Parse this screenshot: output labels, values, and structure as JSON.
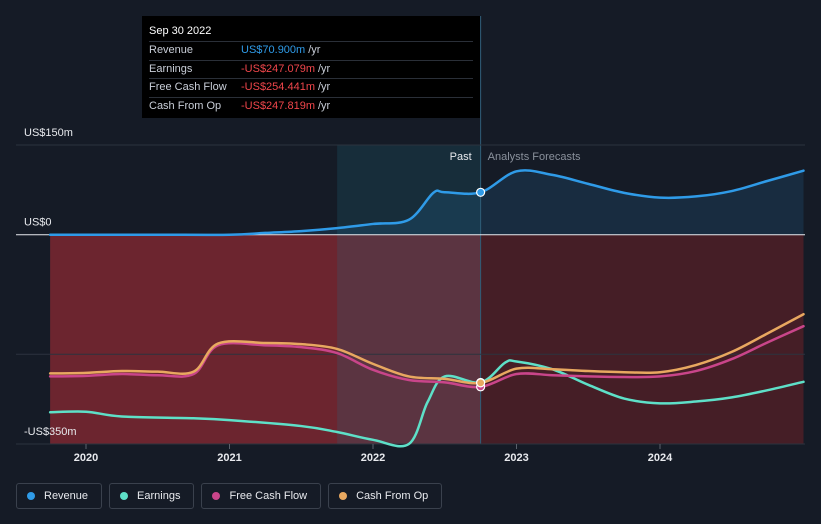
{
  "tooltip": {
    "date": "Sep 30 2022",
    "rows": [
      {
        "label": "Revenue",
        "value": "US$70.900m",
        "unit": "/yr"
      },
      {
        "label": "Earnings",
        "value": "-US$247.079m",
        "unit": "/yr"
      },
      {
        "label": "Free Cash Flow",
        "value": "-US$254.441m",
        "unit": "/yr"
      },
      {
        "label": "Cash From Op",
        "value": "-US$247.819m",
        "unit": "/yr"
      }
    ]
  },
  "legend": [
    {
      "label": "Revenue",
      "color": "#2f9be8"
    },
    {
      "label": "Earnings",
      "color": "#5ee0c8"
    },
    {
      "label": "Free Cash Flow",
      "color": "#c9458a"
    },
    {
      "label": "Cash From Op",
      "color": "#e8a860"
    }
  ],
  "chart_data": {
    "type": "line",
    "y_tick_labels": [
      {
        "value": 150,
        "label": "US$150m"
      },
      {
        "value": 0,
        "label": "US$0"
      },
      {
        "value": -350,
        "label": "-US$350m"
      }
    ],
    "x_tick_labels": [
      "2020",
      "2021",
      "2022",
      "2023",
      "2024"
    ],
    "ylim": [
      -350,
      150
    ],
    "past_label": "Past",
    "forecast_label": "Analysts Forecasts",
    "past_end": 2022.75,
    "highlight_start": 2021.75,
    "series": [
      {
        "name": "Revenue",
        "color": "#2f9be8",
        "points": [
          [
            2019.75,
            0
          ],
          [
            2020.0,
            0
          ],
          [
            2020.5,
            0
          ],
          [
            2021.0,
            0
          ],
          [
            2021.25,
            3
          ],
          [
            2021.5,
            6
          ],
          [
            2021.75,
            11
          ],
          [
            2022.0,
            18
          ],
          [
            2022.25,
            25
          ],
          [
            2022.42,
            70
          ],
          [
            2022.5,
            71
          ],
          [
            2022.75,
            70.9
          ],
          [
            2023.0,
            106
          ],
          [
            2023.25,
            100
          ],
          [
            2023.5,
            85
          ],
          [
            2023.75,
            70
          ],
          [
            2024.0,
            62
          ],
          [
            2024.25,
            64
          ],
          [
            2024.5,
            73
          ],
          [
            2024.75,
            90
          ],
          [
            2025.0,
            107
          ]
        ]
      },
      {
        "name": "Earnings",
        "color": "#5ee0c8",
        "points": [
          [
            2019.75,
            -297
          ],
          [
            2020.0,
            -296
          ],
          [
            2020.25,
            -304
          ],
          [
            2020.75,
            -307
          ],
          [
            2021.0,
            -310
          ],
          [
            2021.5,
            -320
          ],
          [
            2021.75,
            -330
          ],
          [
            2022.0,
            -343
          ],
          [
            2022.25,
            -350
          ],
          [
            2022.38,
            -280
          ],
          [
            2022.5,
            -237
          ],
          [
            2022.75,
            -247.1
          ],
          [
            2022.92,
            -214
          ],
          [
            2023.0,
            -212
          ],
          [
            2023.25,
            -225
          ],
          [
            2023.5,
            -251
          ],
          [
            2023.75,
            -274
          ],
          [
            2024.0,
            -282
          ],
          [
            2024.25,
            -279
          ],
          [
            2024.5,
            -272
          ],
          [
            2024.75,
            -260
          ],
          [
            2025.0,
            -246
          ]
        ]
      },
      {
        "name": "Free Cash Flow",
        "color": "#c9458a",
        "points": [
          [
            2019.75,
            -237
          ],
          [
            2020.0,
            -236
          ],
          [
            2020.25,
            -233
          ],
          [
            2020.5,
            -235
          ],
          [
            2020.75,
            -233
          ],
          [
            2020.92,
            -185
          ],
          [
            2021.25,
            -185
          ],
          [
            2021.5,
            -188
          ],
          [
            2021.75,
            -198
          ],
          [
            2022.0,
            -226
          ],
          [
            2022.25,
            -243
          ],
          [
            2022.5,
            -247
          ],
          [
            2022.75,
            -254.4
          ],
          [
            2023.0,
            -233
          ],
          [
            2023.25,
            -235
          ],
          [
            2023.5,
            -237
          ],
          [
            2023.75,
            -238
          ],
          [
            2024.0,
            -237
          ],
          [
            2024.25,
            -228
          ],
          [
            2024.5,
            -208
          ],
          [
            2024.75,
            -180
          ],
          [
            2025.0,
            -153
          ]
        ]
      },
      {
        "name": "Cash From Op",
        "color": "#e8a860",
        "points": [
          [
            2019.75,
            -232
          ],
          [
            2020.0,
            -231
          ],
          [
            2020.25,
            -228
          ],
          [
            2020.5,
            -229
          ],
          [
            2020.75,
            -229
          ],
          [
            2020.92,
            -182
          ],
          [
            2021.25,
            -181
          ],
          [
            2021.5,
            -183
          ],
          [
            2021.75,
            -191
          ],
          [
            2022.0,
            -216
          ],
          [
            2022.25,
            -237
          ],
          [
            2022.5,
            -241
          ],
          [
            2022.75,
            -247.8
          ],
          [
            2023.0,
            -224
          ],
          [
            2023.25,
            -225
          ],
          [
            2023.5,
            -228
          ],
          [
            2023.75,
            -230
          ],
          [
            2024.0,
            -230
          ],
          [
            2024.25,
            -218
          ],
          [
            2024.5,
            -196
          ],
          [
            2024.75,
            -165
          ],
          [
            2025.0,
            -133
          ]
        ]
      }
    ]
  }
}
